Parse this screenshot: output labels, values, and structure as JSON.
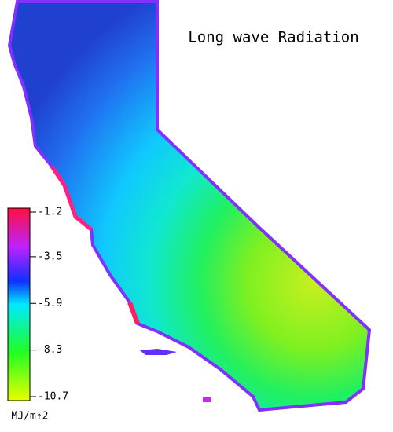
{
  "title": "Long wave Radiation",
  "colorbar": {
    "range": [
      -10.7,
      -1.2
    ],
    "ticks": [
      -1.2,
      -3.5,
      -5.9,
      -8.3,
      -10.7
    ],
    "unit": "MJ/m↑2"
  }
}
